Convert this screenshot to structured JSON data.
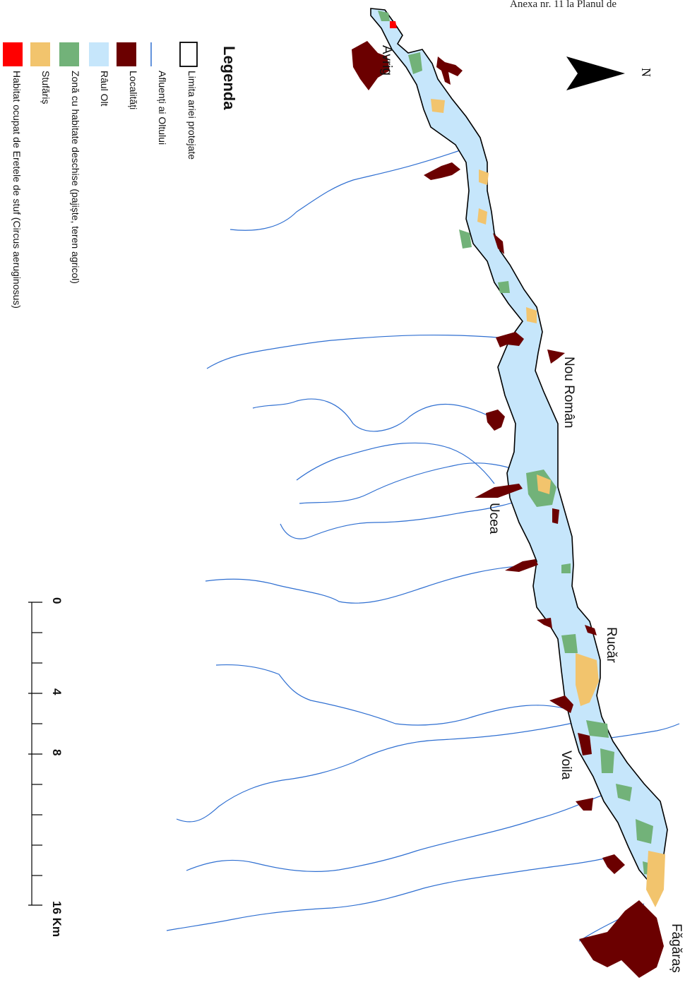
{
  "header": {
    "text": "Anexa nr. 11 la Planul de"
  },
  "north": {
    "label": "N"
  },
  "legend": {
    "title": "Legenda",
    "items": [
      {
        "key": "boundary",
        "label": "Limita ariei protejate",
        "color": "#000000"
      },
      {
        "key": "tributary",
        "label": "Afluenți ai Oltului",
        "color": "#2f6fd1"
      },
      {
        "key": "localities",
        "label": "Localități",
        "color": "#6b0000"
      },
      {
        "key": "river",
        "label": "Râul Olt",
        "color": "#c6e6fb"
      },
      {
        "key": "open",
        "label": "Zonă cu habitate deschise (pajiște, teren agricol)",
        "color": "#72b279"
      },
      {
        "key": "reed",
        "label": "Stufăriș",
        "color": "#f2c46d"
      },
      {
        "key": "harrier",
        "label": "Habitat ocupat de Eretele de stuf (Circus aeruginosus)",
        "color": "#ff0000"
      }
    ]
  },
  "towns": {
    "avrig": "Avrig",
    "nou_roman": "Nou Român",
    "ucea": "Ucea",
    "rucar": "Rucăr",
    "voila": "Voila",
    "fagaras": "Făgăraș"
  },
  "scale": {
    "ticks": [
      "0",
      "4",
      "8",
      "16 Km"
    ]
  },
  "colors": {
    "river": "#c6e6fb",
    "locality": "#6b0000",
    "open": "#72b279",
    "reed": "#f2c46d",
    "harrier": "#ff0000",
    "tributary": "#2f6fd1",
    "boundary": "#000000"
  }
}
